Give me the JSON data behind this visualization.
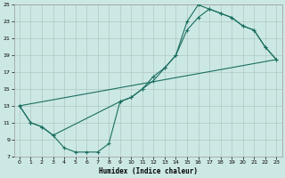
{
  "xlabel": "Humidex (Indice chaleur)",
  "background_color": "#cce8e4",
  "grid_color": "#b0c8c4",
  "line_color": "#1a6e60",
  "xlim": [
    -0.5,
    23.5
  ],
  "ylim": [
    7,
    25
  ],
  "xticks": [
    0,
    1,
    2,
    3,
    4,
    5,
    6,
    7,
    8,
    9,
    10,
    11,
    12,
    13,
    14,
    15,
    16,
    17,
    18,
    19,
    20,
    21,
    22,
    23
  ],
  "yticks": [
    7,
    9,
    11,
    13,
    15,
    17,
    19,
    21,
    23,
    25
  ],
  "curve1_x": [
    0,
    1,
    2,
    3,
    4,
    5,
    6,
    7,
    8,
    9,
    10,
    11,
    12,
    13,
    14,
    15,
    16,
    17,
    18,
    19,
    20,
    21,
    22,
    23
  ],
  "curve1_y": [
    13,
    11,
    10.5,
    9.5,
    8,
    7.5,
    7.5,
    7.5,
    8.5,
    13.5,
    14,
    15,
    16.5,
    17.5,
    19,
    23,
    25,
    24.5,
    24,
    23.5,
    22.5,
    22,
    20,
    18.5
  ],
  "curve2_x": [
    0,
    1,
    2,
    3,
    9,
    10,
    11,
    12,
    13,
    14,
    15,
    16,
    17,
    18,
    19,
    20,
    21,
    22,
    23
  ],
  "curve2_y": [
    13,
    11,
    10.5,
    9.5,
    13.5,
    14,
    15,
    16,
    17.5,
    19,
    22,
    23.5,
    24.5,
    24,
    23.5,
    22.5,
    22,
    20,
    18.5
  ],
  "line3_x": [
    0,
    23
  ],
  "line3_y": [
    13,
    18.5
  ]
}
